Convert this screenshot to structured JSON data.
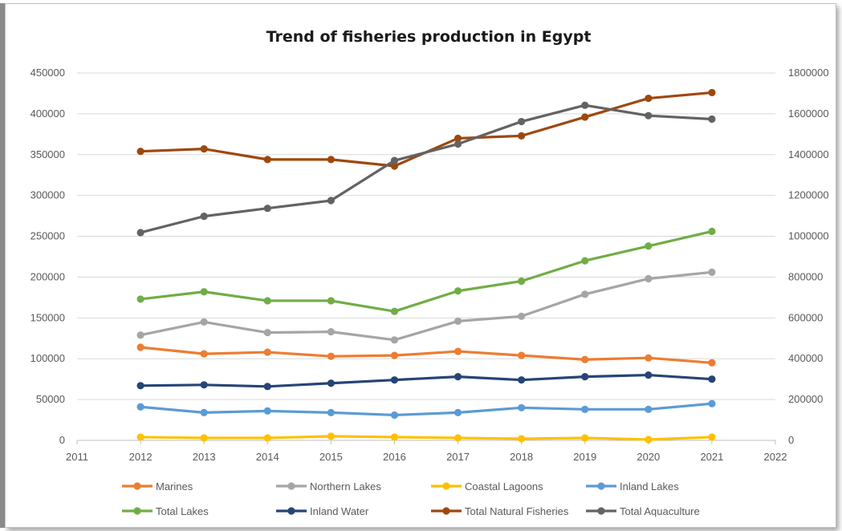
{
  "chart_data": {
    "type": "line",
    "title": "Trend of fisheries production in Egypt",
    "xlabel": "",
    "ylabel": "",
    "x": [
      2012,
      2013,
      2014,
      2015,
      2016,
      2017,
      2018,
      2019,
      2020,
      2021
    ],
    "xlim": [
      2011,
      2022
    ],
    "x_ticks": [
      "2011",
      "2012",
      "2013",
      "2014",
      "2015",
      "2016",
      "2017",
      "2018",
      "2019",
      "2020",
      "2021",
      "2022"
    ],
    "ylim": [
      0,
      450000
    ],
    "y_ticks": [
      "0",
      "50000",
      "100000",
      "150000",
      "200000",
      "250000",
      "300000",
      "350000",
      "400000",
      "450000"
    ],
    "y2lim": [
      0,
      1800000
    ],
    "y2_ticks": [
      "0",
      "200000",
      "400000",
      "600000",
      "800000",
      "1000000",
      "1200000",
      "1400000",
      "1600000",
      "1800000"
    ],
    "grid": true,
    "legend_position": "bottom",
    "series": [
      {
        "name": "Marines",
        "color": "#ed7d31",
        "axis": "left",
        "values": [
          114000,
          106000,
          108000,
          103000,
          104000,
          109000,
          104000,
          99000,
          101000,
          95000
        ]
      },
      {
        "name": "Northern Lakes",
        "color": "#a5a5a5",
        "axis": "left",
        "values": [
          129000,
          145000,
          132000,
          133000,
          123000,
          146000,
          152000,
          179000,
          198000,
          206000
        ]
      },
      {
        "name": "Coastal Lagoons",
        "color": "#ffc000",
        "axis": "left",
        "values": [
          4000,
          3000,
          3000,
          5000,
          4000,
          3000,
          2000,
          3000,
          1000,
          4000
        ]
      },
      {
        "name": "Inland Lakes",
        "color": "#5b9bd5",
        "axis": "left",
        "values": [
          41000,
          34000,
          36000,
          34000,
          31000,
          34000,
          40000,
          38000,
          38000,
          45000
        ]
      },
      {
        "name": "Total Lakes",
        "color": "#70ad47",
        "axis": "left",
        "values": [
          173000,
          182000,
          171000,
          171000,
          158000,
          183000,
          195000,
          220000,
          238000,
          256000
        ]
      },
      {
        "name": "Inland Water",
        "color": "#264478",
        "axis": "left",
        "values": [
          67000,
          68000,
          66000,
          70000,
          74000,
          78000,
          74000,
          78000,
          80000,
          75000
        ]
      },
      {
        "name": "Total Natural Fisheries",
        "color": "#9e480e",
        "axis": "left",
        "values": [
          354000,
          357000,
          344000,
          344000,
          336000,
          370000,
          373000,
          396000,
          419000,
          426000
        ]
      },
      {
        "name": "Total Aquaculture",
        "color": "#636363",
        "axis": "right",
        "values": [
          1018000,
          1098000,
          1137000,
          1175000,
          1371000,
          1452000,
          1562000,
          1642000,
          1591000,
          1574000
        ]
      }
    ]
  }
}
